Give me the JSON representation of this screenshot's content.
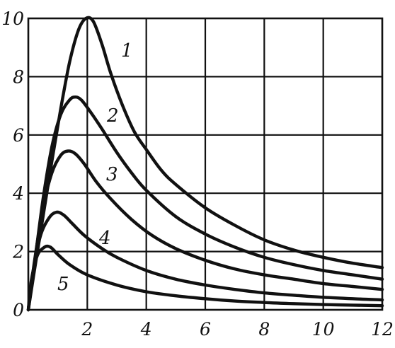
{
  "chart_data": {
    "type": "line",
    "title": "",
    "xlabel": "",
    "ylabel": "",
    "xlim": [
      0,
      12
    ],
    "ylim": [
      0,
      10
    ],
    "grid": true,
    "x_ticks": [
      2,
      4,
      6,
      8,
      10,
      12
    ],
    "y_ticks": [
      0,
      2,
      4,
      6,
      8,
      10
    ],
    "x_tick_labels": [
      "2",
      "4",
      "6",
      "8",
      "10",
      "12"
    ],
    "y_tick_labels": [
      "0",
      "2",
      "4",
      "6",
      "8",
      "10"
    ],
    "series": [
      {
        "label": "1",
        "points": [
          [
            0,
            0
          ],
          [
            0.2,
            1.3
          ],
          [
            0.5,
            3.2
          ],
          [
            0.8,
            5.1
          ],
          [
            1.1,
            6.9
          ],
          [
            1.4,
            8.5
          ],
          [
            1.7,
            9.6
          ],
          [
            1.95,
            10.0
          ],
          [
            2.2,
            9.9
          ],
          [
            2.5,
            9.1
          ],
          [
            2.8,
            8.1
          ],
          [
            3.2,
            7.0
          ],
          [
            3.6,
            6.1
          ],
          [
            4.0,
            5.5
          ],
          [
            4.5,
            4.8
          ],
          [
            5,
            4.3
          ],
          [
            6,
            3.5
          ],
          [
            7,
            2.9
          ],
          [
            8,
            2.4
          ],
          [
            9,
            2.05
          ],
          [
            10,
            1.8
          ],
          [
            11,
            1.6
          ],
          [
            12,
            1.45
          ]
        ]
      },
      {
        "label": "2",
        "points": [
          [
            0,
            0
          ],
          [
            0.2,
            1.5
          ],
          [
            0.5,
            3.8
          ],
          [
            0.8,
            5.6
          ],
          [
            1.1,
            6.7
          ],
          [
            1.4,
            7.2
          ],
          [
            1.6,
            7.3
          ],
          [
            1.8,
            7.2
          ],
          [
            2.1,
            6.8
          ],
          [
            2.5,
            6.2
          ],
          [
            3,
            5.4
          ],
          [
            3.5,
            4.7
          ],
          [
            4,
            4.1
          ],
          [
            5,
            3.2
          ],
          [
            6,
            2.6
          ],
          [
            7,
            2.15
          ],
          [
            8,
            1.8
          ],
          [
            9,
            1.55
          ],
          [
            10,
            1.35
          ],
          [
            11,
            1.2
          ],
          [
            12,
            1.05
          ]
        ]
      },
      {
        "label": "3",
        "points": [
          [
            0,
            0
          ],
          [
            0.2,
            1.6
          ],
          [
            0.5,
            3.5
          ],
          [
            0.8,
            4.7
          ],
          [
            1.1,
            5.3
          ],
          [
            1.35,
            5.45
          ],
          [
            1.6,
            5.35
          ],
          [
            1.9,
            5.0
          ],
          [
            2.3,
            4.4
          ],
          [
            2.8,
            3.8
          ],
          [
            3.5,
            3.1
          ],
          [
            4.2,
            2.55
          ],
          [
            5,
            2.1
          ],
          [
            6,
            1.7
          ],
          [
            7,
            1.4
          ],
          [
            8,
            1.2
          ],
          [
            9,
            1.05
          ],
          [
            10,
            0.9
          ],
          [
            11,
            0.8
          ],
          [
            12,
            0.7
          ]
        ]
      },
      {
        "label": "4",
        "points": [
          [
            0,
            0
          ],
          [
            0.15,
            1.2
          ],
          [
            0.4,
            2.5
          ],
          [
            0.7,
            3.15
          ],
          [
            0.95,
            3.35
          ],
          [
            1.2,
            3.25
          ],
          [
            1.5,
            2.95
          ],
          [
            1.9,
            2.55
          ],
          [
            2.5,
            2.1
          ],
          [
            3,
            1.8
          ],
          [
            4,
            1.35
          ],
          [
            5,
            1.05
          ],
          [
            6,
            0.85
          ],
          [
            7,
            0.7
          ],
          [
            8,
            0.58
          ],
          [
            9,
            0.5
          ],
          [
            10,
            0.43
          ],
          [
            11,
            0.38
          ],
          [
            12,
            0.34
          ]
        ]
      },
      {
        "label": "5",
        "points": [
          [
            0,
            0
          ],
          [
            0.1,
            1.0
          ],
          [
            0.3,
            1.85
          ],
          [
            0.55,
            2.15
          ],
          [
            0.75,
            2.15
          ],
          [
            1.0,
            1.9
          ],
          [
            1.4,
            1.55
          ],
          [
            2,
            1.2
          ],
          [
            3,
            0.85
          ],
          [
            4,
            0.62
          ],
          [
            5,
            0.48
          ],
          [
            6,
            0.38
          ],
          [
            7,
            0.3
          ],
          [
            8,
            0.25
          ],
          [
            9,
            0.21
          ],
          [
            10,
            0.18
          ],
          [
            11,
            0.16
          ],
          [
            12,
            0.14
          ]
        ]
      }
    ]
  }
}
